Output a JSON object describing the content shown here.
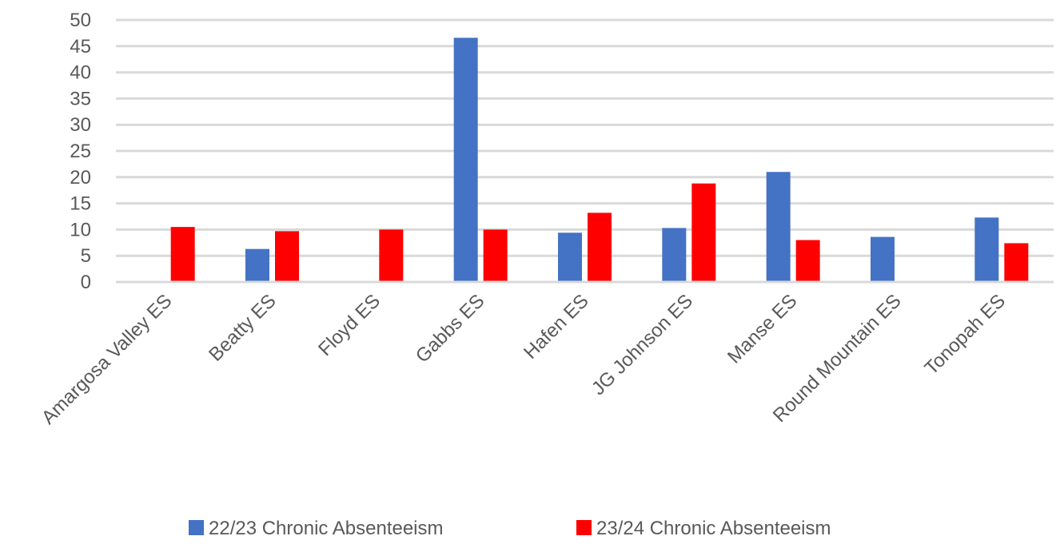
{
  "chart_data": {
    "type": "bar",
    "title": "",
    "xlabel": "",
    "ylabel": "",
    "categories": [
      "Amargosa Valley ES",
      "Beatty ES",
      "Floyd ES",
      "Gabbs ES",
      "Hafen ES",
      "JG Johnson ES",
      "Manse ES",
      "Round Mountain ES",
      "Tonopah ES"
    ],
    "series": [
      {
        "name": "22/23 Chronic Absenteeism",
        "color": "#4472C4",
        "values": [
          null,
          6.3,
          null,
          46.6,
          9.4,
          10.3,
          21.0,
          8.6,
          12.3
        ]
      },
      {
        "name": "23/24 Chronic Absenteeism",
        "color": "#FF0000",
        "values": [
          10.5,
          9.7,
          10.0,
          10.0,
          13.2,
          18.8,
          8.0,
          null,
          7.4
        ]
      }
    ],
    "ylim": [
      0,
      50
    ],
    "yticks": [
      0,
      5,
      10,
      15,
      20,
      25,
      30,
      35,
      40,
      45,
      50
    ],
    "grid": true,
    "legend_position": "bottom"
  }
}
